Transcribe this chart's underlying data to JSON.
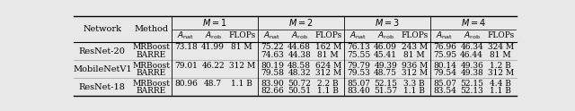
{
  "header_font_size": 7.0,
  "cell_font_size": 6.5,
  "bg_color": "#e8e8e8",
  "rows": [
    {
      "network": "ResNet-20",
      "methods": [
        {
          "method": "MRBoost",
          "M1": [
            "73.18",
            "41.99",
            "81 M"
          ],
          "M2": [
            "75.22",
            "44.68",
            "162 M"
          ],
          "M3": [
            "76.13",
            "46.09",
            "243 M"
          ],
          "M4": [
            "76.96",
            "46.34",
            "324 M"
          ]
        },
        {
          "method": "BARRE",
          "M1": [
            "",
            "",
            ""
          ],
          "M2": [
            "74.63",
            "44.38",
            "81 M"
          ],
          "M3": [
            "75.55",
            "45.41",
            "81 M"
          ],
          "M4": [
            "75.95",
            "46.44",
            "81 M"
          ]
        }
      ]
    },
    {
      "network": "MobileNetV1",
      "methods": [
        {
          "method": "MRBoost",
          "M1": [
            "79.01",
            "46.22",
            "312 M"
          ],
          "M2": [
            "80.19",
            "48.58",
            "624 M"
          ],
          "M3": [
            "79.79",
            "49.39",
            "936 M"
          ],
          "M4": [
            "80.14",
            "49.36",
            "1.2 B"
          ]
        },
        {
          "method": "BARRE",
          "M1": [
            "",
            "",
            ""
          ],
          "M2": [
            "79.58",
            "48.32",
            "312 M"
          ],
          "M3": [
            "79.53",
            "48.75",
            "312 M"
          ],
          "M4": [
            "79.54",
            "49.38",
            "312 M"
          ]
        }
      ]
    },
    {
      "network": "ResNet-18",
      "methods": [
        {
          "method": "MRBoost",
          "M1": [
            "80.96",
            "48.7",
            "1.1 B"
          ],
          "M2": [
            "83.90",
            "50.72",
            "2.2 B"
          ],
          "M3": [
            "85.07",
            "52.15",
            "3.3 B"
          ],
          "M4": [
            "85.07",
            "52.15",
            "4.4 B"
          ]
        },
        {
          "method": "BARRE",
          "M1": [
            "",
            "",
            ""
          ],
          "M2": [
            "82.66",
            "50.51",
            "1.1 B"
          ],
          "M3": [
            "83.40",
            "51.57",
            "1.1 B"
          ],
          "M4": [
            "83.54",
            "52.13",
            "1.1 B"
          ]
        }
      ]
    }
  ]
}
